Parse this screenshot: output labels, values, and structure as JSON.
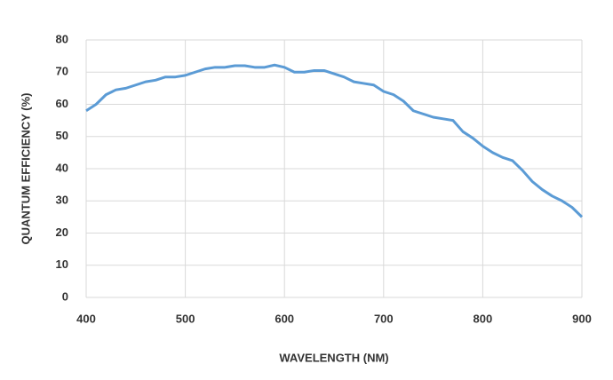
{
  "chart_data": {
    "type": "line",
    "xlabel": "WAVELENGTH (NM)",
    "ylabel": "QUANTUM EFFICIENCY (%)",
    "x": [
      400,
      410,
      420,
      430,
      440,
      450,
      460,
      470,
      480,
      490,
      500,
      510,
      520,
      530,
      540,
      550,
      560,
      570,
      580,
      590,
      600,
      610,
      620,
      630,
      640,
      650,
      660,
      670,
      680,
      690,
      700,
      710,
      720,
      730,
      740,
      750,
      760,
      770,
      780,
      790,
      800,
      810,
      820,
      830,
      840,
      850,
      860,
      870,
      880,
      890,
      900
    ],
    "series": [
      {
        "name": "Quantum efficiency",
        "color": "#5b9bd5",
        "values": [
          58,
          60,
          63,
          64.5,
          65,
          66,
          67,
          67.5,
          68.5,
          68.5,
          69,
          70,
          71,
          71.5,
          71.5,
          72,
          72,
          71.5,
          71.5,
          72.2,
          71.5,
          70,
          70,
          70.5,
          70.5,
          69.5,
          68.5,
          67,
          66.5,
          66,
          64,
          63,
          61,
          58,
          57,
          56,
          55.5,
          55,
          51.5,
          49.5,
          47,
          45,
          43.5,
          42.5,
          39.5,
          36,
          33.5,
          31.5,
          30,
          28,
          25
        ]
      }
    ],
    "xlim": [
      400,
      900
    ],
    "xticks": [
      400,
      500,
      600,
      700,
      800,
      900
    ],
    "ylim": [
      0,
      80
    ],
    "yticks": [
      0,
      10,
      20,
      30,
      40,
      50,
      60,
      70,
      80
    ],
    "grid": true
  }
}
